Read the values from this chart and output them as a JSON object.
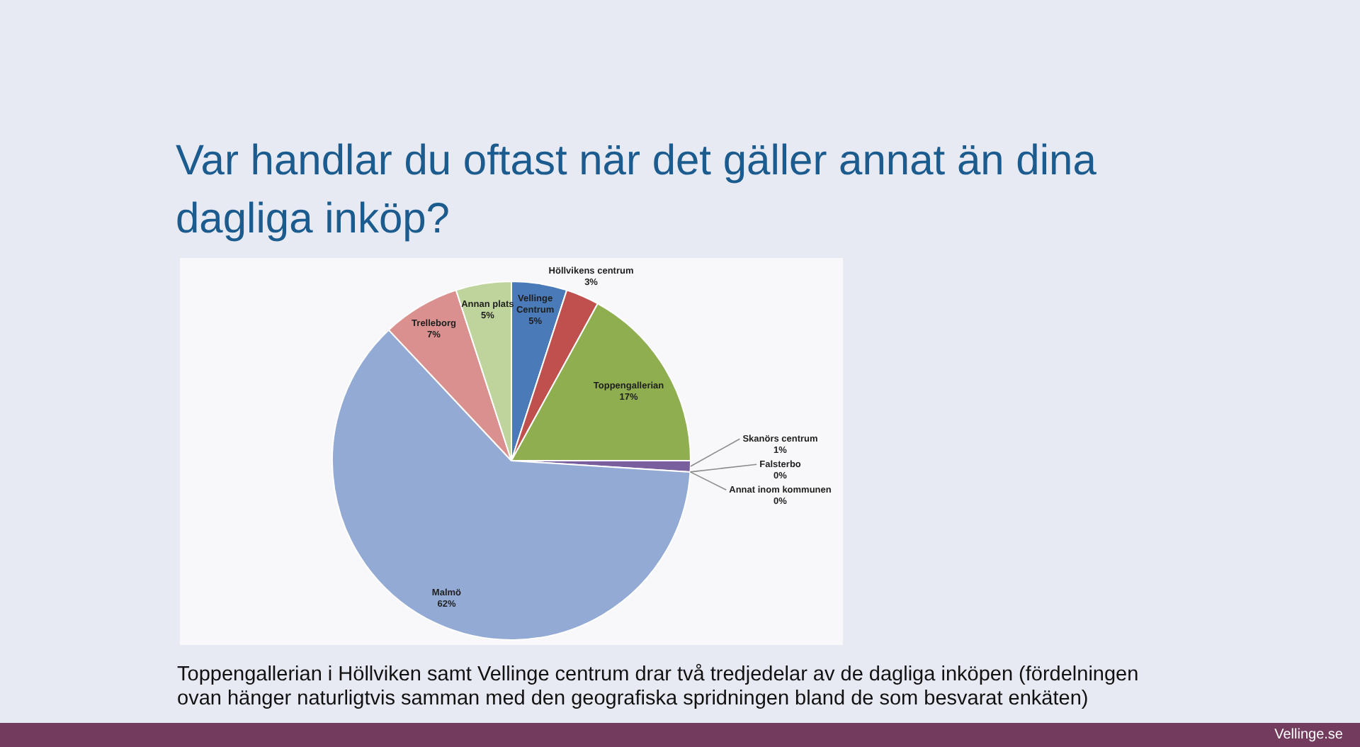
{
  "chart_data": {
    "type": "pie",
    "title": "Var handlar du oftast när det gäller annat än dina dagliga inköp?",
    "categories": [
      "Vellinge Centrum",
      "Höllvikens centrum",
      "Toppengallerian",
      "Skanörs centrum",
      "Falsterbo",
      "Annat inom kommunen",
      "Malmö",
      "Trelleborg",
      "Annan plats"
    ],
    "values": [
      5,
      3,
      17,
      1,
      0,
      0,
      62,
      7,
      5
    ],
    "colors": [
      "#4a7ab8",
      "#c0504d",
      "#8fae4f",
      "#7a5f9e",
      "#4bacc6",
      "#e39a62",
      "#93aad4",
      "#d9908e",
      "#bfd39c"
    ],
    "value_labels": [
      "5%",
      "3%",
      "17%",
      "1%",
      "0%",
      "0%",
      "62%",
      "7%",
      "5%"
    ],
    "annotations": [
      "Toppengallerian i Höllviken samt Vellinge centrum drar två tredjedelar av de dagliga inköpen (fördelningen ovan hänger naturligtvis samman med den geografiska spridningen bland de som besvarat enkäten)",
      "Vellinge.se"
    ]
  }
}
